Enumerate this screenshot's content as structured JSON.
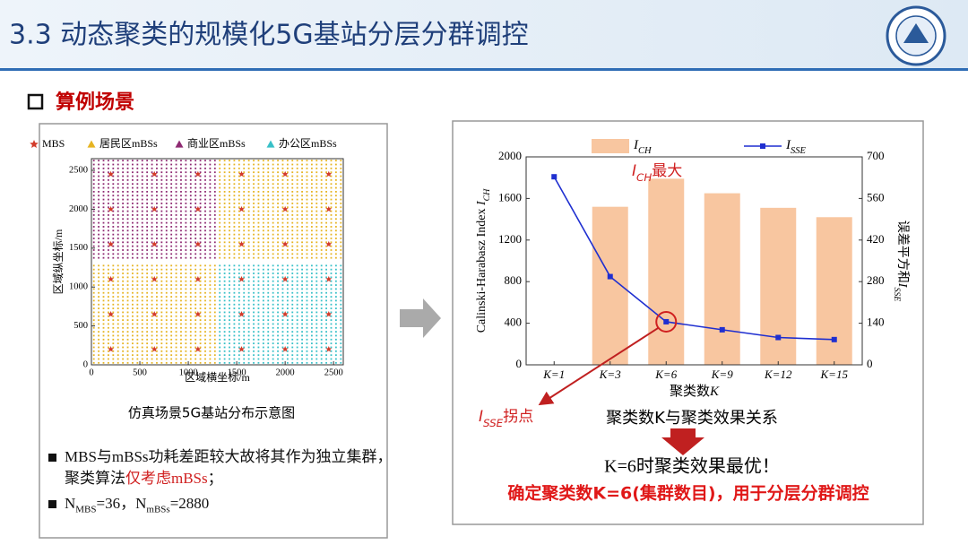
{
  "header": {
    "title": "3.3 动态聚类的规模化5G基站分层分群调控"
  },
  "section": {
    "title": "算例场景"
  },
  "chart_data": [
    {
      "type": "scatter",
      "legend": "top",
      "xlabel": "区域横坐标/m",
      "ylabel": "区域纵坐标/m",
      "xlim": [
        0,
        2600
      ],
      "ylim": [
        0,
        2650
      ],
      "xticks": [
        0,
        500,
        1000,
        1500,
        2000,
        2500
      ],
      "yticks": [
        0,
        500,
        1000,
        1500,
        2000,
        2500
      ],
      "series": [
        {
          "name": "MBS",
          "color": "#d23b2a",
          "marker": "star",
          "blocks": [
            {
              "x": [
                200,
                650,
                1100,
                1550,
                2000,
                2450
              ],
              "y": [
                200,
                650,
                1100,
                1550,
                2000,
                2450
              ]
            }
          ]
        },
        {
          "name": "居民区mBSs",
          "color": "#e6b422",
          "marker": "triangle",
          "blocks": [
            {
              "x": [
                25,
                75,
                125,
                175,
                225,
                275,
                325,
                375,
                425,
                475,
                525,
                575,
                625,
                675,
                725,
                775,
                825,
                875,
                925,
                975,
                1025,
                1075,
                1125,
                1175,
                1225,
                1275
              ],
              "y": [
                25,
                75,
                125,
                175,
                225,
                275,
                325,
                375,
                425,
                475,
                525,
                575,
                625,
                675,
                725,
                775,
                825,
                875,
                925,
                975,
                1025,
                1075,
                1125,
                1175,
                1225,
                1275
              ]
            },
            {
              "x": [
                1325,
                1375,
                1425,
                1475,
                1525,
                1575,
                1625,
                1675,
                1725,
                1775,
                1825,
                1875,
                1925,
                1975,
                2025,
                2075,
                2125,
                2175,
                2225,
                2275,
                2325,
                2375,
                2425,
                2475,
                2525,
                2575
              ],
              "y": [
                1375,
                1425,
                1475,
                1525,
                1575,
                1625,
                1675,
                1725,
                1775,
                1825,
                1875,
                1925,
                1975,
                2025,
                2075,
                2125,
                2175,
                2225,
                2275,
                2325,
                2375,
                2425,
                2475,
                2525,
                2575,
                2625
              ]
            }
          ]
        },
        {
          "name": "商业区mBSs",
          "color": "#8e2a72",
          "marker": "triangle",
          "blocks": [
            {
              "x": [
                25,
                75,
                125,
                175,
                225,
                275,
                325,
                375,
                425,
                475,
                525,
                575,
                625,
                675,
                725,
                775,
                825,
                875,
                925,
                975,
                1025,
                1075,
                1125,
                1175,
                1225,
                1275
              ],
              "y": [
                1375,
                1425,
                1475,
                1525,
                1575,
                1625,
                1675,
                1725,
                1775,
                1825,
                1875,
                1925,
                1975,
                2025,
                2075,
                2125,
                2175,
                2225,
                2275,
                2325,
                2375,
                2425,
                2475,
                2525,
                2575,
                2625
              ]
            }
          ]
        },
        {
          "name": "办公区mBSs",
          "color": "#38c0c8",
          "marker": "triangle",
          "blocks": [
            {
              "x": [
                1325,
                1375,
                1425,
                1475,
                1525,
                1575,
                1625,
                1675,
                1725,
                1775,
                1825,
                1875,
                1925,
                1975,
                2025,
                2075,
                2125,
                2175,
                2225,
                2275,
                2325,
                2375,
                2425,
                2475,
                2525,
                2575
              ],
              "y": [
                25,
                75,
                125,
                175,
                225,
                275,
                325,
                375,
                425,
                475,
                525,
                575,
                625,
                675,
                725,
                775,
                825,
                875,
                925,
                975,
                1025,
                1075,
                1125,
                1175,
                1225,
                1275
              ]
            }
          ]
        }
      ],
      "caption": "仿真场景5G基站分布示意图"
    },
    {
      "type": "bar-line",
      "legend": "top",
      "categories": [
        "K=1",
        "K=3",
        "K=6",
        "K=9",
        "K=12",
        "K=15"
      ],
      "series": [
        {
          "name": [
            {
              "text": "I",
              "italic": true
            },
            {
              "text": "CH",
              "sub": true,
              "italic": true
            }
          ],
          "type": "bar",
          "color": "#f8c6a0",
          "values": [
            null,
            1520,
            1790,
            1650,
            1510,
            1420
          ]
        },
        {
          "name": [
            {
              "text": "I",
              "italic": true
            },
            {
              "text": "SSE",
              "sub": true,
              "italic": true
            }
          ],
          "type": "line",
          "color": "#1f2fd0",
          "marker": "square",
          "axis": "y2",
          "values": [
            633,
            297,
            145,
            118,
            92,
            85
          ]
        }
      ],
      "ylim": [
        0,
        2000
      ],
      "yticks": [
        0,
        400,
        800,
        1200,
        1600,
        2000
      ],
      "y2lim": [
        0,
        700
      ],
      "y2ticks": [
        0,
        140,
        280,
        420,
        560,
        700
      ],
      "xlabel": [
        {
          "text": "聚类数"
        },
        {
          "text": "K",
          "italic": true
        }
      ],
      "ylabel": [
        {
          "text": "Calinski-Harabasz Index "
        },
        {
          "text": "I",
          "italic": true
        },
        {
          "text": "CH",
          "sub": true,
          "italic": true
        }
      ],
      "y2label": [
        {
          "text": "误差平方和"
        },
        {
          "text": "I",
          "italic": true
        },
        {
          "text": "SSE",
          "sub": true,
          "italic": true
        }
      ],
      "annotations": [
        {
          "color": "#d02020",
          "text": [
            {
              "text": "I",
              "italic": true
            },
            {
              "text": "CH",
              "sub": true,
              "italic": true
            },
            {
              "text": "最大"
            }
          ]
        },
        {
          "color": "#d02020",
          "text": [
            {
              "text": "I",
              "italic": true
            },
            {
              "text": "SSE",
              "sub": true,
              "italic": true
            },
            {
              "text": "拐点"
            }
          ]
        }
      ]
    }
  ],
  "notes": [
    [
      {
        "text": "MBS与mBSs功耗差距较大故将其作为独立集群，聚类算法"
      },
      {
        "text": "仅考虑mBSs",
        "color": "#d02020"
      },
      {
        "text": "；"
      }
    ],
    [
      {
        "text": "N"
      },
      {
        "text": "MBS",
        "sub": true
      },
      {
        "text": "=36，N"
      },
      {
        "text": "mBSs",
        "sub": true
      },
      {
        "text": "=2880"
      }
    ]
  ],
  "summary": {
    "relation": "聚类数K与聚类效果关系",
    "result": "K=6时聚类效果最优！",
    "decision": "确定聚类数K=6(集群数目)，用于分层分群调控"
  }
}
